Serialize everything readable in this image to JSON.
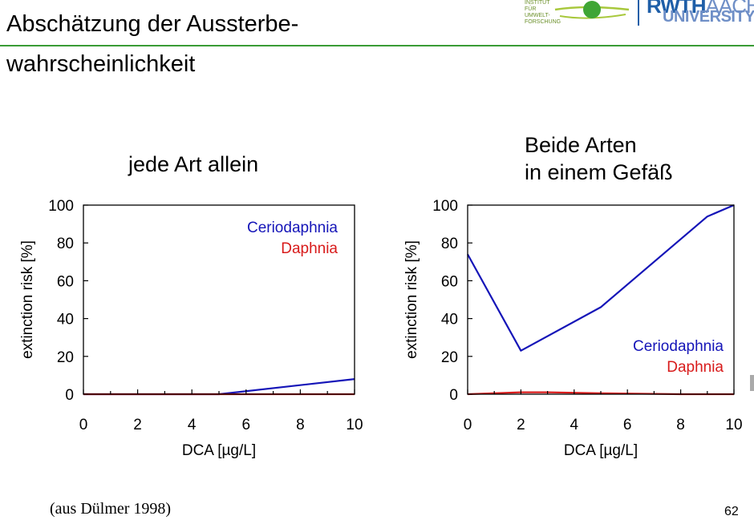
{
  "slide": {
    "title_line1": "Abschätzung der Aussterbe-",
    "title_line2": "wahrscheinlichkeit",
    "citation": "(aus Dülmer 1998)",
    "page_number": "62",
    "accent_color": "#3a9c35"
  },
  "logos": {
    "institute_lines": [
      "INSTITUT",
      "FÜR",
      "UMWELT-",
      "FORSCHUNG"
    ],
    "university_main": "RWTH",
    "university_main_suffix": "AACHEN",
    "university_sub": "UNIVERSITY"
  },
  "chart_data": [
    {
      "type": "line",
      "title_lines": [
        "jede Art allein"
      ],
      "xlabel": "DCA [µg/L]",
      "ylabel": "extinction risk [%]",
      "xlim": [
        0,
        10
      ],
      "ylim": [
        0,
        100
      ],
      "xticks": [
        0,
        2,
        4,
        6,
        8,
        10
      ],
      "yticks": [
        0,
        20,
        40,
        60,
        80,
        100
      ],
      "grid": false,
      "legend_position": "top-right",
      "series": [
        {
          "name": "Ceriodaphnia",
          "color": "#1515b8",
          "x": [
            0,
            5,
            10
          ],
          "y": [
            0,
            0,
            8
          ]
        },
        {
          "name": "Daphnia",
          "color": "#d81b1b",
          "x": [
            0,
            10
          ],
          "y": [
            0,
            0
          ]
        }
      ]
    },
    {
      "type": "line",
      "title_lines": [
        "Beide Arten",
        "in einem Gefäß"
      ],
      "xlabel": "DCA [µg/L]",
      "ylabel": "extinction risk [%]",
      "xlim": [
        0,
        10
      ],
      "ylim": [
        0,
        100
      ],
      "xticks": [
        0,
        2,
        4,
        6,
        8,
        10
      ],
      "yticks": [
        0,
        20,
        40,
        60,
        80,
        100
      ],
      "grid": false,
      "legend_position": "bottom-right",
      "series": [
        {
          "name": "Ceriodaphnia",
          "color": "#1515b8",
          "x": [
            0,
            2,
            5,
            9,
            10
          ],
          "y": [
            74,
            23,
            46,
            94,
            100
          ]
        },
        {
          "name": "Daphnia",
          "color": "#d81b1b",
          "x": [
            0,
            2,
            3,
            5,
            8,
            10
          ],
          "y": [
            0,
            1,
            1,
            0.5,
            0,
            0
          ]
        }
      ]
    }
  ]
}
